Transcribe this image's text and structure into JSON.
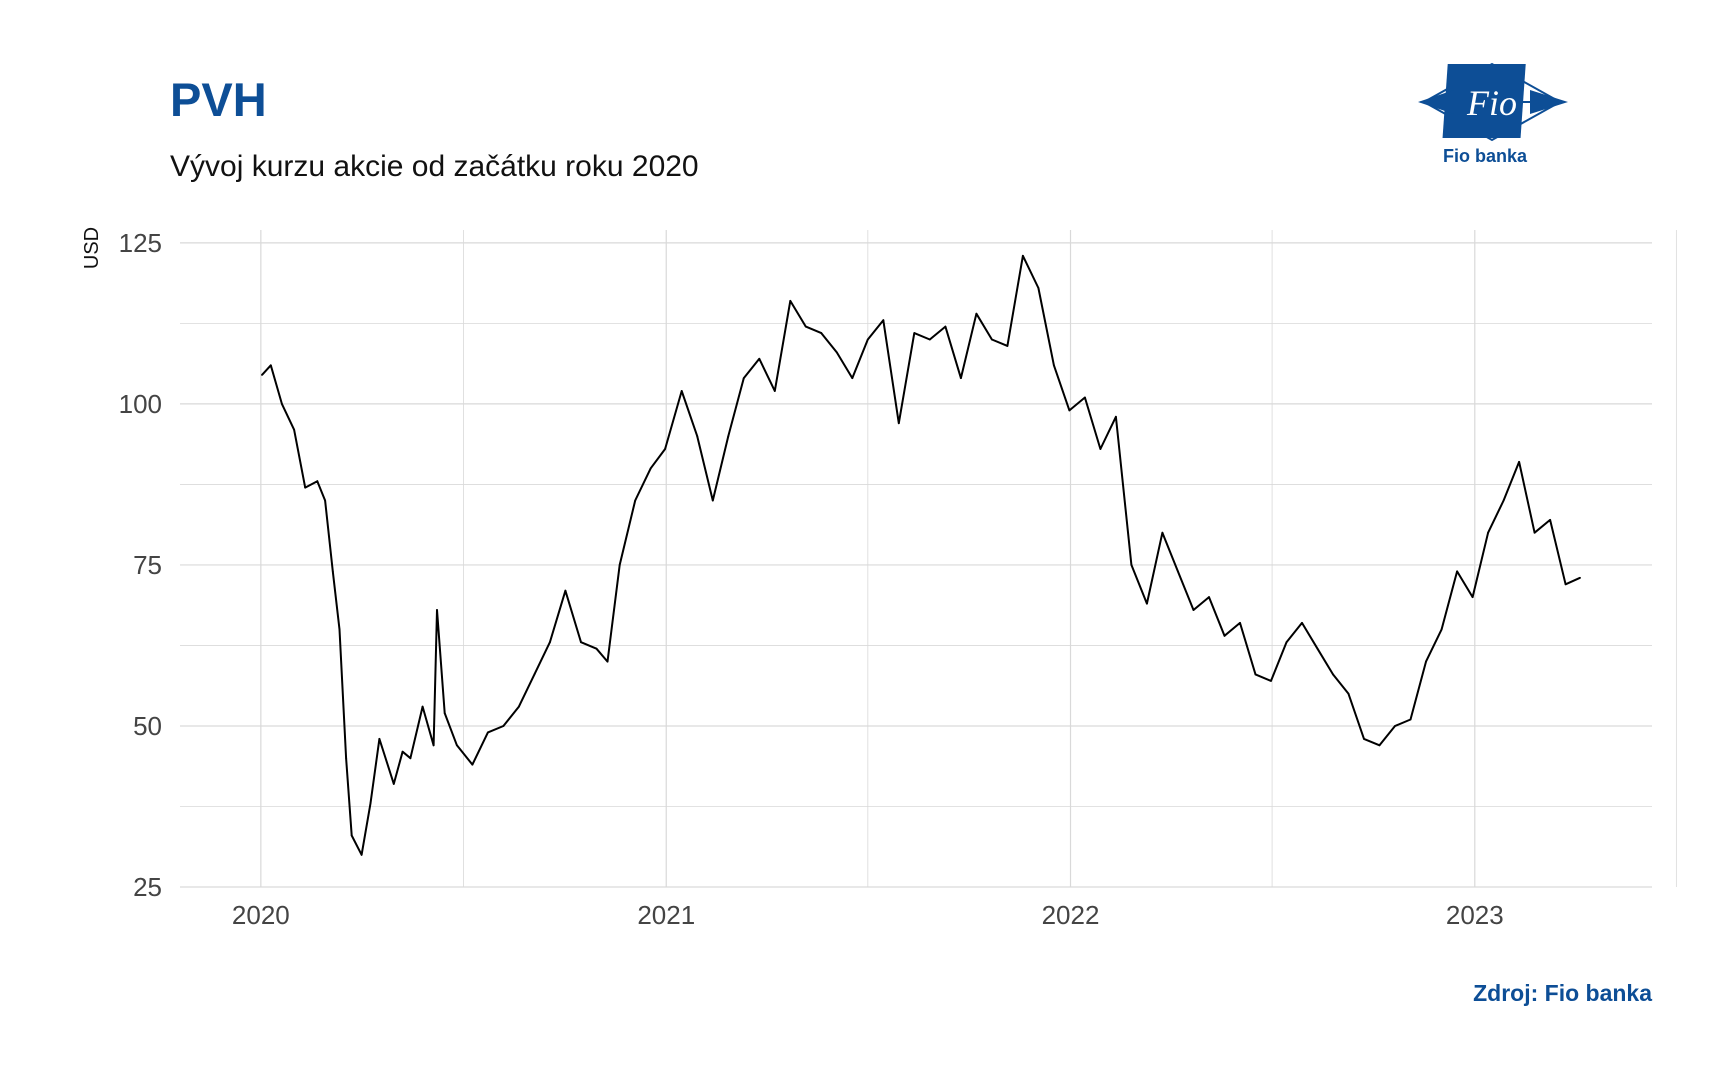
{
  "header": {
    "title": "PVH",
    "subtitle": "Vývoj kurzu akcie od začátku roku 2020"
  },
  "logo": {
    "mark_text": "Fio",
    "caption": "Fio banka",
    "color": "#0d4e96"
  },
  "footer": {
    "source": "Zdroj: Fio banka"
  },
  "colors": {
    "brand": "#0d4e96",
    "line": "#000000",
    "grid": "#d9d9d9"
  },
  "chart_data": {
    "type": "line",
    "title": "PVH",
    "subtitle": "Vývoj kurzu akcie od začátku roku 2020",
    "ylabel": "USD",
    "xlabel": "",
    "ylim": [
      25,
      127
    ],
    "xlim": [
      "2019-10-20",
      "2023-06-10"
    ],
    "yticks": [
      25,
      50,
      75,
      100,
      125
    ],
    "xticks": [
      {
        "date": "2020-01-01",
        "label": "2020"
      },
      {
        "date": "2021-01-01",
        "label": "2021"
      },
      {
        "date": "2022-01-01",
        "label": "2022"
      },
      {
        "date": "2023-01-01",
        "label": "2023"
      }
    ],
    "grid": true,
    "legend": "none",
    "series": [
      {
        "x": [
          "2020-01-02",
          "2020-01-10",
          "2020-01-20",
          "2020-01-31",
          "2020-02-10",
          "2020-02-21",
          "2020-02-28",
          "2020-03-06",
          "2020-03-12",
          "2020-03-18",
          "2020-03-23",
          "2020-04-01",
          "2020-04-09",
          "2020-04-17",
          "2020-04-30",
          "2020-05-08",
          "2020-05-15",
          "2020-05-26",
          "2020-06-05",
          "2020-06-08",
          "2020-06-15",
          "2020-06-26",
          "2020-07-10",
          "2020-07-24",
          "2020-08-07",
          "2020-08-21",
          "2020-09-04",
          "2020-09-18",
          "2020-10-02",
          "2020-10-16",
          "2020-10-30",
          "2020-11-09",
          "2020-11-20",
          "2020-12-04",
          "2020-12-18",
          "2020-12-31",
          "2021-01-15",
          "2021-01-29",
          "2021-02-12",
          "2021-02-26",
          "2021-03-12",
          "2021-03-26",
          "2021-04-09",
          "2021-04-23",
          "2021-05-07",
          "2021-05-21",
          "2021-06-04",
          "2021-06-18",
          "2021-07-02",
          "2021-07-16",
          "2021-07-30",
          "2021-08-13",
          "2021-08-27",
          "2021-09-10",
          "2021-09-24",
          "2021-10-08",
          "2021-10-22",
          "2021-11-05",
          "2021-11-19",
          "2021-12-03",
          "2021-12-17",
          "2021-12-31",
          "2022-01-14",
          "2022-01-28",
          "2022-02-11",
          "2022-02-25",
          "2022-03-11",
          "2022-03-25",
          "2022-04-08",
          "2022-04-22",
          "2022-05-06",
          "2022-05-20",
          "2022-06-03",
          "2022-06-17",
          "2022-07-01",
          "2022-07-15",
          "2022-07-29",
          "2022-08-12",
          "2022-08-26",
          "2022-09-09",
          "2022-09-23",
          "2022-10-07",
          "2022-10-21",
          "2022-11-04",
          "2022-11-18",
          "2022-12-02",
          "2022-12-16",
          "2022-12-30",
          "2023-01-13",
          "2023-01-27",
          "2023-02-10",
          "2023-02-24",
          "2023-03-10",
          "2023-03-24",
          "2023-04-06"
        ],
        "values": [
          104.5,
          106,
          100,
          96,
          87,
          88,
          85,
          74,
          65,
          45,
          33,
          30,
          38,
          48,
          41,
          46,
          45,
          53,
          47,
          68,
          52,
          47,
          44,
          49,
          50,
          53,
          58,
          63,
          71,
          63,
          62,
          60,
          75,
          85,
          90,
          93,
          102,
          95,
          85,
          95,
          104,
          107,
          102,
          116,
          112,
          111,
          108,
          104,
          110,
          113,
          97,
          111,
          110,
          112,
          104,
          114,
          110,
          109,
          123,
          118,
          106,
          99,
          101,
          93,
          98,
          75,
          69,
          80,
          74,
          68,
          70,
          64,
          66,
          58,
          57,
          63,
          66,
          62,
          58,
          55,
          48,
          47,
          50,
          51,
          60,
          65,
          74,
          70,
          80,
          85,
          91,
          80,
          82,
          72,
          73
        ]
      }
    ]
  }
}
